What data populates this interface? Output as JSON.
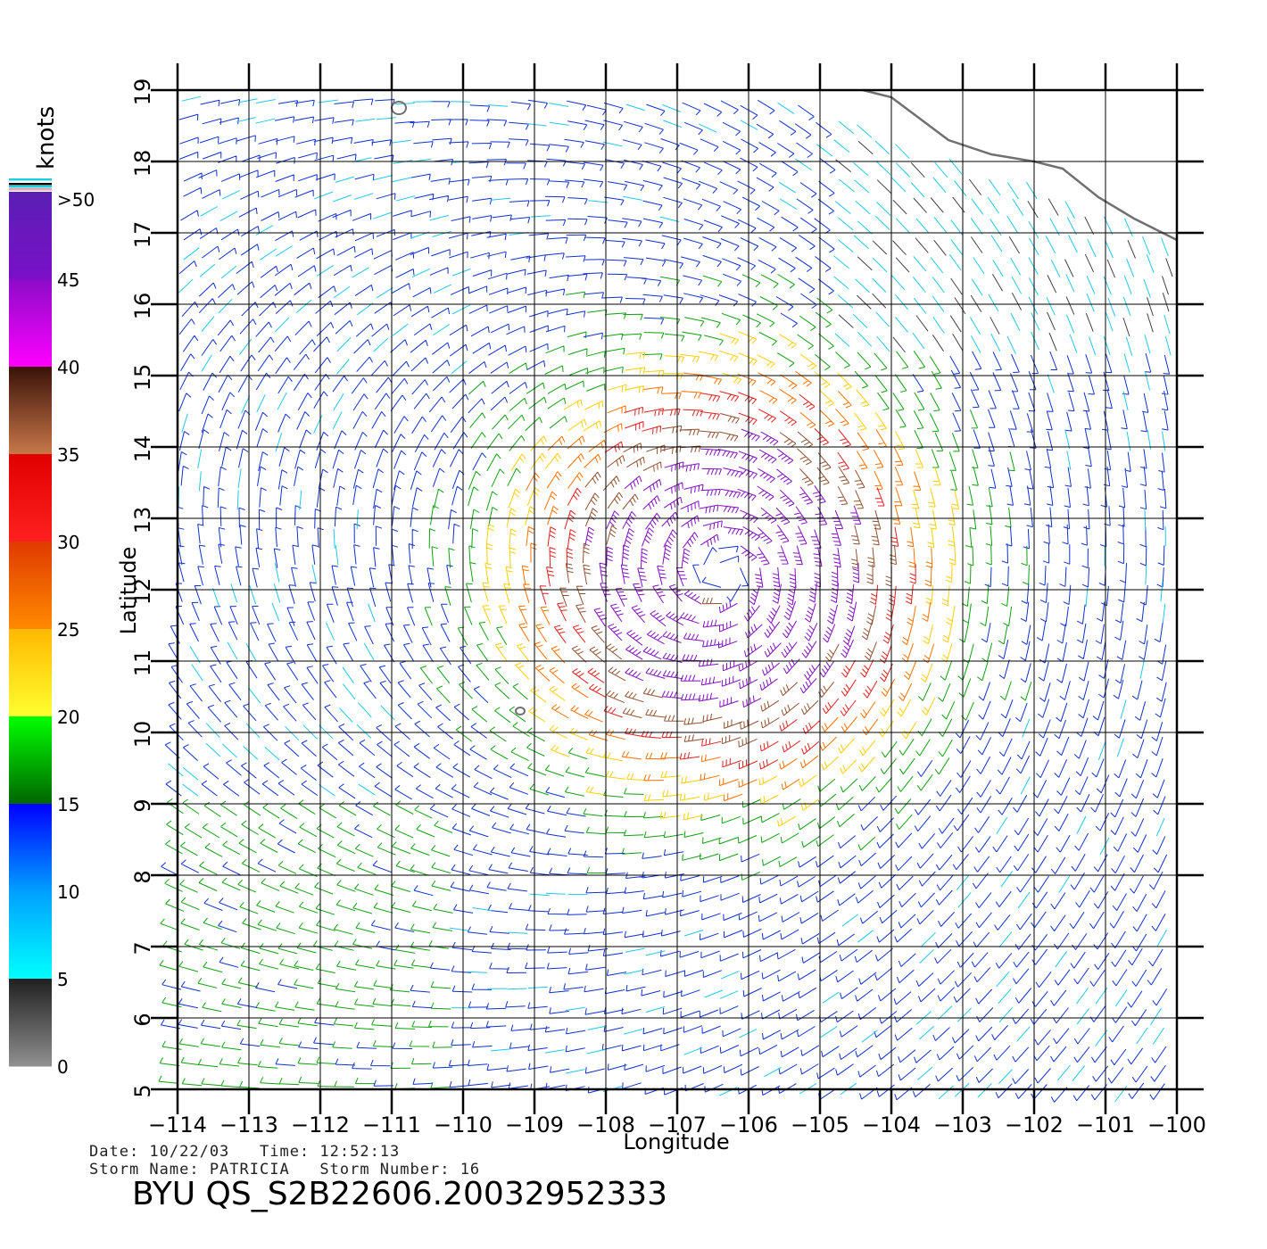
{
  "legend": {
    "title": "knots",
    "ticks": [
      ">50",
      "45",
      "40",
      "35",
      "30",
      "25",
      "20",
      "15",
      "10",
      "5",
      "0"
    ],
    "bands": [
      {
        "label": ">50",
        "stops": [
          "#5a1fb4",
          "#7a10c8"
        ]
      },
      {
        "label": "45",
        "stops": [
          "#8c0cc8",
          "#ff00ff"
        ]
      },
      {
        "label": "40",
        "stops": [
          "#3a1208",
          "#c8784a"
        ]
      },
      {
        "label": "35",
        "stops": [
          "#e00000",
          "#ff2020"
        ]
      },
      {
        "label": "30",
        "stops": [
          "#e03a00",
          "#ff8a00"
        ]
      },
      {
        "label": "25",
        "stops": [
          "#ffb800",
          "#ffff30"
        ]
      },
      {
        "label": "20",
        "stops": [
          "#00ff00",
          "#006400"
        ]
      },
      {
        "label": "15",
        "stops": [
          "#0000ff",
          "#00a0ff"
        ]
      },
      {
        "label": "10",
        "stops": [
          "#00a0ff",
          "#00ffff"
        ]
      },
      {
        "label": "5",
        "stops": [
          "#202020",
          "#909090"
        ]
      }
    ]
  },
  "axes": {
    "xlabel": "Longitude",
    "ylabel": "Latitude",
    "lon_ticks": [
      "−114",
      "−113",
      "−112",
      "−111",
      "−110",
      "−109",
      "−108",
      "−107",
      "−106",
      "−105",
      "−104",
      "−103",
      "−102",
      "−101",
      "−100"
    ],
    "lat_ticks": [
      "5",
      "6",
      "7",
      "8",
      "9",
      "10",
      "11",
      "12",
      "13",
      "14",
      "15",
      "16",
      "17",
      "18",
      "19"
    ],
    "lon_range": [
      -114,
      -100
    ],
    "lat_range": [
      5,
      19
    ]
  },
  "storm": {
    "center_lon": -106.3,
    "center_lat": 12.2
  },
  "info": {
    "line1": "Date: 10/22/03   Time: 12:52:13",
    "line2": "Storm Name: PATRICIA   Storm Number: 16",
    "product": "BYU QS_S2B22606.20032952333"
  },
  "colors": {
    "wind_0_5": "#404040",
    "wind_5_10": "#20c8e8",
    "wind_10_15": "#1030d0",
    "wind_15_20": "#10a010",
    "wind_20_25": "#ffd000",
    "wind_25_30": "#ff7000",
    "wind_30_35": "#e02020",
    "wind_35_40": "#905030",
    "wind_40_plus": "#8010c0",
    "coast": "#707070"
  }
}
